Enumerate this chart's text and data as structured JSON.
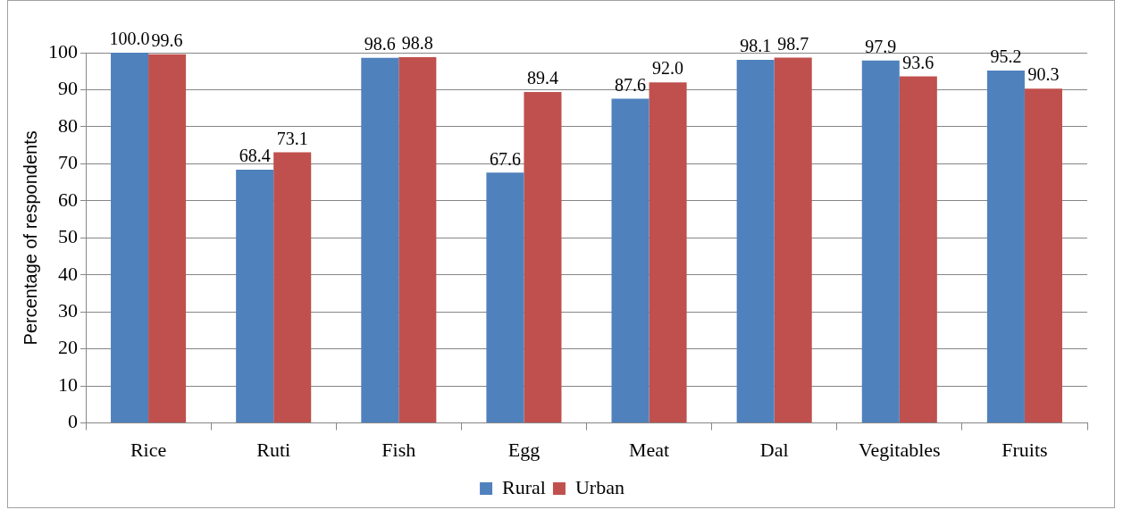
{
  "chart_data": {
    "type": "bar",
    "ylabel": "Percentage of respondents",
    "categories": [
      "Rice",
      "Ruti",
      "Fish",
      "Egg",
      "Meat",
      "Dal",
      "Vegitables",
      "Fruits"
    ],
    "series": [
      {
        "name": "Rural",
        "color": "#4f81bd",
        "values": [
          100.0,
          68.4,
          98.6,
          67.6,
          87.6,
          98.1,
          97.9,
          95.2
        ],
        "value_labels": [
          "100.0",
          "68.4",
          "98.6",
          "67.6",
          "87.6",
          "98.1",
          "97.9",
          "95.2"
        ]
      },
      {
        "name": "Urban",
        "color": "#c0504d",
        "values": [
          99.6,
          73.1,
          98.8,
          89.4,
          92.0,
          98.7,
          93.6,
          90.3
        ],
        "value_labels": [
          "99.6",
          "73.1",
          "98.8",
          "89.4",
          "92.0",
          "98.7",
          "93.6",
          "90.3"
        ]
      }
    ],
    "ylim": [
      0,
      100
    ],
    "yticks": [
      0,
      10,
      20,
      30,
      40,
      50,
      60,
      70,
      80,
      90,
      100
    ],
    "grid": "y",
    "legend": "bottom"
  }
}
